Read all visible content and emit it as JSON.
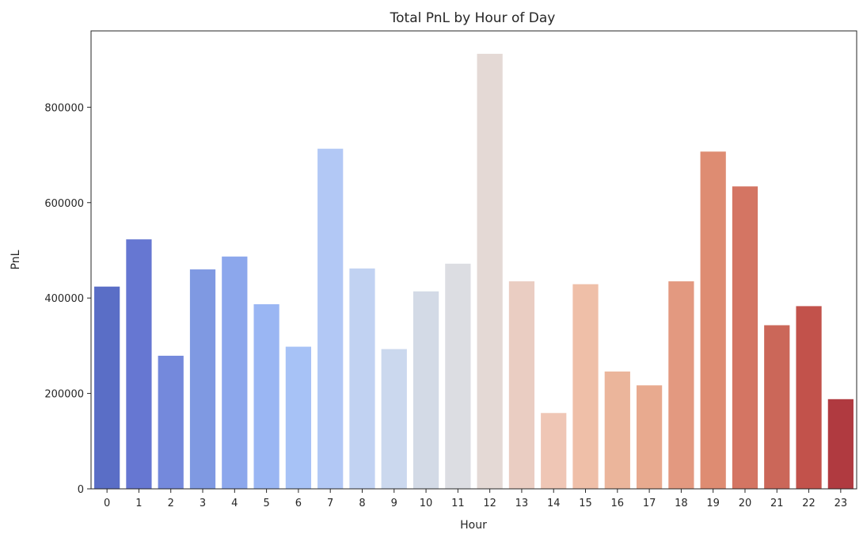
{
  "chart_data": {
    "type": "bar",
    "title": "Total PnL by Hour of Day",
    "xlabel": "Hour",
    "ylabel": "PnL",
    "ylim": [
      0,
      960000
    ],
    "yticks": [
      0,
      200000,
      400000,
      600000,
      800000
    ],
    "ytick_labels": [
      "0",
      "200000",
      "400000",
      "600000",
      "800000"
    ],
    "grid": false,
    "categories": [
      "0",
      "1",
      "2",
      "3",
      "4",
      "5",
      "6",
      "7",
      "8",
      "9",
      "10",
      "11",
      "12",
      "13",
      "14",
      "15",
      "16",
      "17",
      "18",
      "19",
      "20",
      "21",
      "22",
      "23"
    ],
    "values": [
      424000,
      523000,
      279000,
      460000,
      487000,
      387000,
      298000,
      713000,
      462000,
      293000,
      414000,
      472000,
      912000,
      435000,
      159000,
      429000,
      246000,
      217000,
      435000,
      707000,
      634000,
      343000,
      383000,
      188000
    ],
    "colors": [
      "#5a6ec6",
      "#6677d2",
      "#7489dc",
      "#7f99e2",
      "#8ca7ec",
      "#9ab6f3",
      "#a7c2f6",
      "#b2c8f5",
      "#c1d2f2",
      "#cbd8ee",
      "#d3dae6",
      "#dcdde2",
      "#e4d9d5",
      "#eacdc2",
      "#efc6b5",
      "#efbfa8",
      "#ebb59b",
      "#e8aa8f",
      "#e39980",
      "#de8c72",
      "#d47563",
      "#cb6759",
      "#c2524b",
      "#b03a40"
    ]
  }
}
